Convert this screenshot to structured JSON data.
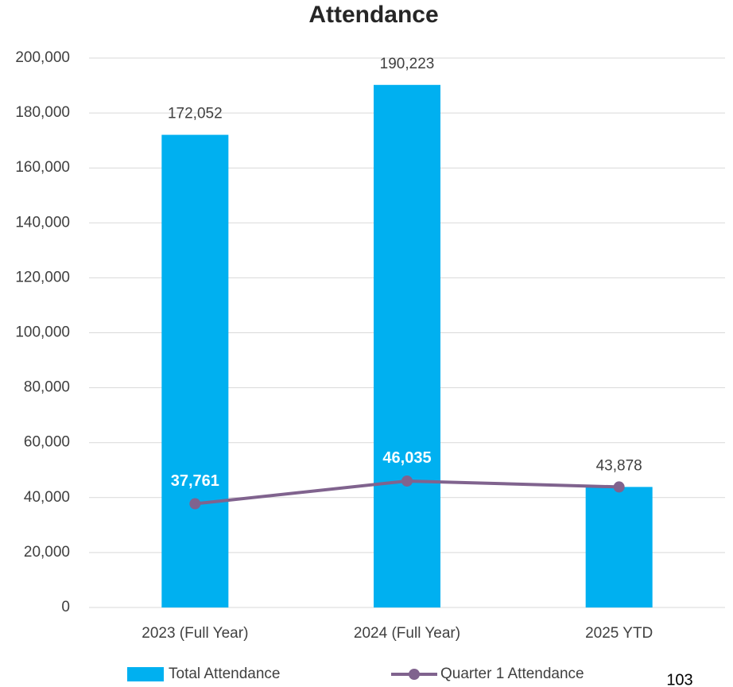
{
  "chart_data": {
    "type": "bar",
    "title": "Attendance",
    "categories": [
      "2023 (Full Year)",
      "2024 (Full Year)",
      "2025 YTD"
    ],
    "series": [
      {
        "name": "Total Attendance",
        "type": "bar",
        "color": "#00b0f0",
        "values": [
          172052,
          190223,
          43878
        ],
        "value_labels": [
          "172,052",
          "190,223",
          "43,878"
        ]
      },
      {
        "name": "Quarter 1 Attendance",
        "type": "line",
        "color": "#80638e",
        "values": [
          37761,
          46035,
          43878
        ],
        "value_labels": [
          "37,761",
          "46,035",
          null
        ]
      }
    ],
    "ylim": [
      0,
      200000
    ],
    "yticks": [
      0,
      {
        "value": 20000,
        "label": "20,000"
      },
      {
        "value": 40000,
        "label": "40,000"
      },
      {
        "value": 60000,
        "label": "60,000"
      },
      {
        "value": 80000,
        "label": "80,000"
      },
      {
        "value": 100000,
        "label": "100,000"
      },
      {
        "value": 120000,
        "label": "120,000"
      },
      {
        "value": 140000,
        "label": "140,000"
      },
      {
        "value": 160000,
        "label": "160,000"
      },
      {
        "value": 180000,
        "label": "180,000"
      },
      {
        "value": 200000,
        "label": "200,000"
      }
    ],
    "grid": true,
    "legend": "bottom"
  },
  "page_number": "103"
}
